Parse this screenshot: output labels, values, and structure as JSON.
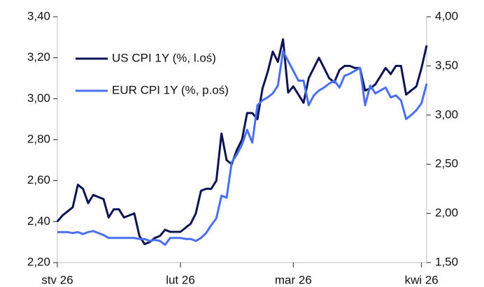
{
  "chart_data": {
    "type": "line",
    "categories": [
      "stv 26",
      null,
      null,
      null,
      null,
      null,
      null,
      null,
      null,
      null,
      null,
      null,
      null,
      null,
      null,
      null,
      null,
      null,
      null,
      null,
      null,
      null,
      null,
      null,
      "lut 26",
      null,
      null,
      null,
      null,
      null,
      null,
      null,
      null,
      null,
      null,
      null,
      null,
      null,
      null,
      null,
      null,
      null,
      null,
      null,
      null,
      null,
      "mar 26",
      null,
      null,
      null,
      null,
      null,
      null,
      null,
      null,
      null,
      null,
      null,
      null,
      null,
      null,
      null,
      null,
      null,
      null,
      null,
      null,
      null,
      null,
      null,
      null,
      "kwi 26",
      null
    ],
    "series": [
      {
        "name": "US CPI 1Y (%, l.oś)",
        "color": "#0d1452",
        "axis": "y",
        "values": [
          2.4,
          2.43,
          2.45,
          2.47,
          2.58,
          2.56,
          2.49,
          2.53,
          2.52,
          2.51,
          2.42,
          2.46,
          2.46,
          2.42,
          2.43,
          2.44,
          2.33,
          2.29,
          2.3,
          2.32,
          2.33,
          2.36,
          2.35,
          2.35,
          2.35,
          2.37,
          2.39,
          2.44,
          2.55,
          2.56,
          2.56,
          2.6,
          2.83,
          2.7,
          2.68,
          2.75,
          2.8,
          2.93,
          2.93,
          2.9,
          3.05,
          3.13,
          3.23,
          3.18,
          3.29,
          3.03,
          3.06,
          3.02,
          2.98,
          3.1,
          3.15,
          3.2,
          3.15,
          3.1,
          3.08,
          3.14,
          3.16,
          3.16,
          3.15,
          3.15,
          3.04,
          3.05,
          3.07,
          3.11,
          3.15,
          3.12,
          3.16,
          3.16,
          3.02,
          3.04,
          3.06,
          3.15,
          3.26
        ]
      },
      {
        "name": "EUR CPI 1Y (%, p.oś)",
        "color": "#4a6ff0",
        "axis": "y2",
        "values": [
          1.81,
          1.81,
          1.81,
          1.8,
          1.81,
          1.79,
          1.81,
          1.82,
          1.8,
          1.78,
          1.75,
          1.75,
          1.75,
          1.75,
          1.75,
          1.75,
          1.74,
          1.74,
          1.72,
          1.73,
          1.72,
          1.68,
          1.75,
          1.75,
          1.75,
          1.74,
          1.74,
          1.72,
          1.75,
          1.8,
          1.88,
          1.95,
          2.18,
          2.16,
          2.52,
          2.6,
          2.7,
          2.85,
          2.72,
          3.1,
          3.15,
          3.18,
          3.22,
          3.3,
          3.65,
          3.55,
          3.45,
          3.35,
          3.35,
          3.1,
          3.2,
          3.25,
          3.28,
          3.32,
          3.35,
          3.28,
          3.4,
          3.42,
          3.45,
          3.48,
          3.1,
          3.3,
          3.22,
          3.25,
          3.28,
          3.18,
          3.2,
          3.15,
          2.96,
          3.0,
          3.05,
          3.12,
          3.32
        ]
      }
    ],
    "ylim": [
      2.2,
      3.4
    ],
    "yticks": [
      {
        "value": 2.2,
        "label": "2,20"
      },
      {
        "value": 2.4,
        "label": "2,40"
      },
      {
        "value": 2.6,
        "label": "2,60"
      },
      {
        "value": 2.8,
        "label": "2,80"
      },
      {
        "value": 3.0,
        "label": "3,00"
      },
      {
        "value": 3.2,
        "label": "3,20"
      },
      {
        "value": 3.4,
        "label": "3,40"
      }
    ],
    "y2lim": [
      1.5,
      4.0
    ],
    "y2ticks": [
      {
        "value": 1.5,
        "label": "1,50"
      },
      {
        "value": 2.0,
        "label": "2,00"
      },
      {
        "value": 2.5,
        "label": "2,50"
      },
      {
        "value": 3.0,
        "label": "3,00"
      },
      {
        "value": 3.5,
        "label": "3,50"
      },
      {
        "value": 4.0,
        "label": "4,00"
      }
    ],
    "legend": "upper left",
    "grid": false
  }
}
